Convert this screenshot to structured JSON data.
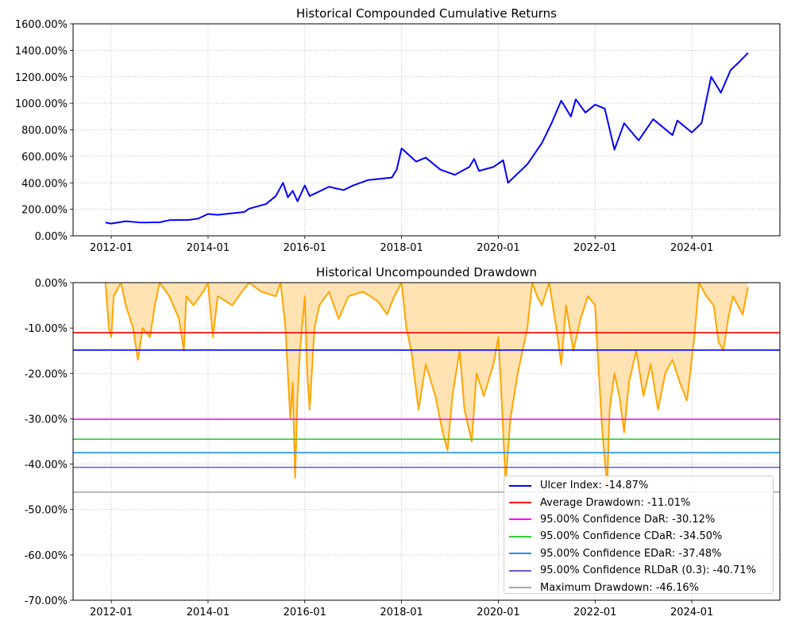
{
  "chart_data": [
    {
      "type": "line",
      "title": "Historical Compounded Cumulative Returns",
      "xlabel": "",
      "ylabel": "",
      "xlim": [
        2011.21,
        2025.82
      ],
      "ylim": [
        0,
        1600
      ],
      "x_ticks": [
        "2012-01",
        "2014-01",
        "2016-01",
        "2018-01",
        "2020-01",
        "2022-01",
        "2024-01"
      ],
      "x_tick_values": [
        2012,
        2014,
        2016,
        2018,
        2020,
        2022,
        2024
      ],
      "y_ticks": [
        "0.00%",
        "200.00%",
        "400.00%",
        "600.00%",
        "800.00%",
        "1000.00%",
        "1200.00%",
        "1400.00%",
        "1600.00%"
      ],
      "y_tick_values": [
        0,
        200,
        400,
        600,
        800,
        1000,
        1200,
        1400,
        1600
      ],
      "grid": true,
      "series": [
        {
          "name": "Cumulative Returns",
          "color": "#0000ff",
          "x": [
            2011.88,
            2012.0,
            2012.3,
            2012.6,
            2013.0,
            2013.2,
            2013.6,
            2013.8,
            2014.0,
            2014.2,
            2014.5,
            2014.75,
            2014.85,
            2015.2,
            2015.4,
            2015.55,
            2015.65,
            2015.75,
            2015.85,
            2016.0,
            2016.1,
            2016.5,
            2016.8,
            2017.0,
            2017.3,
            2017.8,
            2017.9,
            2018.0,
            2018.3,
            2018.5,
            2018.8,
            2019.1,
            2019.4,
            2019.5,
            2019.6,
            2019.9,
            2020.1,
            2020.2,
            2020.4,
            2020.6,
            2020.9,
            2021.1,
            2021.3,
            2021.5,
            2021.6,
            2021.8,
            2022.0,
            2022.2,
            2022.4,
            2022.6,
            2022.9,
            2023.2,
            2023.6,
            2023.7,
            2024.0,
            2024.2,
            2024.4,
            2024.6,
            2024.8,
            2025.0,
            2025.16
          ],
          "y": [
            100,
            92,
            110,
            100,
            102,
            118,
            120,
            130,
            165,
            158,
            170,
            180,
            205,
            240,
            300,
            400,
            290,
            340,
            260,
            380,
            300,
            370,
            345,
            380,
            420,
            440,
            500,
            660,
            560,
            590,
            500,
            460,
            520,
            580,
            490,
            520,
            570,
            400,
            470,
            540,
            700,
            850,
            1020,
            900,
            1030,
            930,
            990,
            960,
            650,
            850,
            720,
            880,
            760,
            870,
            780,
            850,
            1200,
            1080,
            1250,
            1320,
            1380
          ]
        }
      ]
    },
    {
      "type": "area",
      "title": "Historical Uncompounded Drawdown",
      "xlabel": "",
      "ylabel": "",
      "xlim": [
        2011.21,
        2025.82
      ],
      "ylim": [
        -70,
        0
      ],
      "x_ticks": [
        "2012-01",
        "2014-01",
        "2016-01",
        "2018-01",
        "2020-01",
        "2022-01",
        "2024-01"
      ],
      "x_tick_values": [
        2012,
        2014,
        2016,
        2018,
        2020,
        2022,
        2024
      ],
      "y_ticks": [
        "-70.00%",
        "-60.00%",
        "-50.00%",
        "-40.00%",
        "-30.00%",
        "-20.00%",
        "-10.00%",
        "0.00%"
      ],
      "y_tick_values": [
        -70,
        -60,
        -50,
        -40,
        -30,
        -20,
        -10,
        0
      ],
      "grid": true,
      "legend_placement": "lower-right",
      "series": [
        {
          "name": "Drawdown",
          "color": "#ffa500",
          "fill": "#ffe3b3",
          "x": [
            2011.88,
            2011.95,
            2012.0,
            2012.05,
            2012.2,
            2012.3,
            2012.45,
            2012.55,
            2012.65,
            2012.8,
            2012.9,
            2013.0,
            2013.2,
            2013.4,
            2013.5,
            2013.55,
            2013.7,
            2013.9,
            2014.0,
            2014.1,
            2014.2,
            2014.5,
            2014.7,
            2014.85,
            2015.1,
            2015.4,
            2015.5,
            2015.6,
            2015.7,
            2015.75,
            2015.8,
            2015.85,
            2015.9,
            2016.0,
            2016.05,
            2016.1,
            2016.2,
            2016.3,
            2016.5,
            2016.7,
            2016.9,
            2017.2,
            2017.5,
            2017.7,
            2017.85,
            2018.0,
            2018.1,
            2018.2,
            2018.35,
            2018.5,
            2018.7,
            2018.85,
            2018.95,
            2019.05,
            2019.2,
            2019.3,
            2019.45,
            2019.55,
            2019.7,
            2019.9,
            2020.0,
            2020.05,
            2020.15,
            2020.25,
            2020.4,
            2020.6,
            2020.7,
            2020.8,
            2020.9,
            2021.05,
            2021.2,
            2021.3,
            2021.4,
            2021.55,
            2021.7,
            2021.85,
            2022.0,
            2022.05,
            2022.15,
            2022.25,
            2022.3,
            2022.4,
            2022.5,
            2022.6,
            2022.7,
            2022.85,
            2023.0,
            2023.15,
            2023.3,
            2023.45,
            2023.6,
            2023.75,
            2023.9,
            2024.05,
            2024.15,
            2024.3,
            2024.45,
            2024.55,
            2024.65,
            2024.75,
            2024.85,
            2024.95,
            2025.05,
            2025.16
          ],
          "y": [
            0,
            -10,
            -12,
            -3,
            0,
            -5,
            -10,
            -17,
            -10,
            -12,
            -5,
            0,
            -3,
            -8,
            -15,
            -3,
            -5,
            -2,
            0,
            -12,
            -3,
            -5,
            -2,
            0,
            -2,
            -3,
            0,
            -10,
            -30,
            -22,
            -43,
            -25,
            -15,
            -3,
            -20,
            -28,
            -10,
            -5,
            -2,
            -8,
            -3,
            -2,
            -4,
            -7,
            -3,
            0,
            -10,
            -15,
            -28,
            -18,
            -25,
            -33,
            -37,
            -25,
            -15,
            -28,
            -35,
            -20,
            -25,
            -18,
            -12,
            -22,
            -44,
            -30,
            -20,
            -10,
            0,
            -3,
            -5,
            0,
            -10,
            -18,
            -5,
            -15,
            -8,
            -3,
            -5,
            -15,
            -33,
            -45,
            -28,
            -20,
            -25,
            -33,
            -22,
            -15,
            -25,
            -18,
            -28,
            -20,
            -17,
            -22,
            -26,
            -12,
            0,
            -3,
            -5,
            -13,
            -15,
            -8,
            -3,
            -5,
            -7,
            -1
          ]
        }
      ],
      "hlines": [
        {
          "label": "Ulcer Index: -14.87%",
          "value": -14.87,
          "color": "#0000ff"
        },
        {
          "label": "Average Drawdown: -11.01%",
          "value": -11.01,
          "color": "#ff0000"
        },
        {
          "label": "95.00% Confidence DaR: -30.12%",
          "value": -30.12,
          "color": "#ff00ff"
        },
        {
          "label": "95.00% Confidence CDaR: -34.50%",
          "value": -34.5,
          "color": "#32cd32"
        },
        {
          "label": "95.00% Confidence EDaR: -37.48%",
          "value": -37.48,
          "color": "#1e90ff"
        },
        {
          "label": "95.00% Confidence RLDaR (0.3): -40.71%",
          "value": -40.71,
          "color": "#6a5acd"
        },
        {
          "label": "Maximum Drawdown: -46.16%",
          "value": -46.16,
          "color": "#a9a9a9"
        }
      ]
    }
  ]
}
